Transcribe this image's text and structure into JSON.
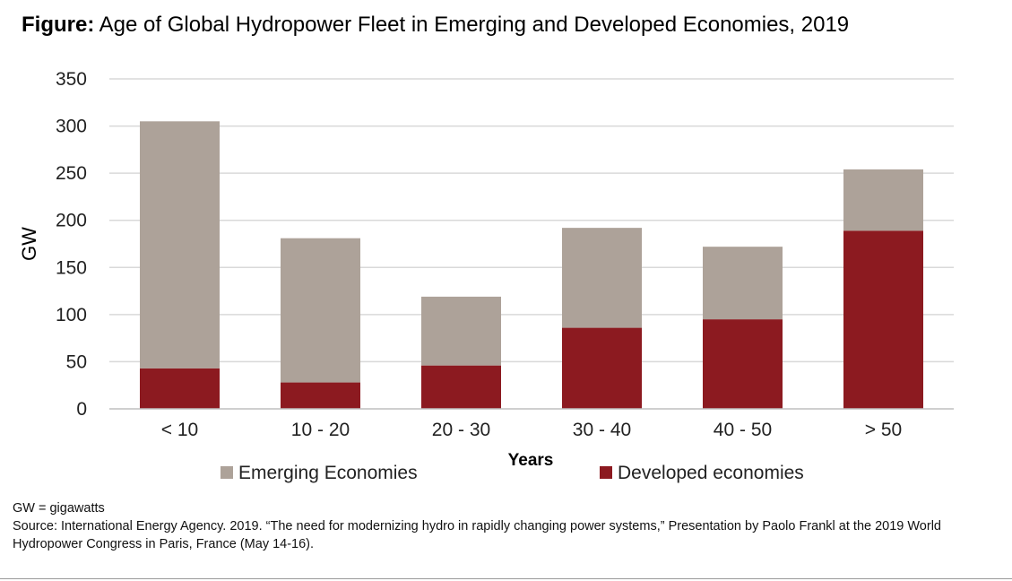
{
  "title": {
    "lead": "Figure:",
    "text": "Age of Global Hydropower Fleet in Emerging and Developed Economies, 2019"
  },
  "colors": {
    "emerging": "#ada299",
    "developed": "#8c1a20",
    "grid": "#d9d9d9",
    "axis": "#bfbfbf"
  },
  "chart_data": {
    "type": "bar",
    "stacked": true,
    "categories": [
      "< 10",
      "10 - 20",
      "20 - 30",
      "30 - 40",
      "40 - 50",
      "> 50"
    ],
    "series": [
      {
        "name": "Developed economies",
        "values": [
          43,
          28,
          46,
          86,
          95,
          189
        ]
      },
      {
        "name": "Emerging Economies",
        "values": [
          262,
          153,
          73,
          106,
          77,
          65
        ]
      }
    ],
    "xlabel": "Years",
    "ylabel": "GW",
    "ylim": [
      0,
      350
    ],
    "yticks": [
      0,
      50,
      100,
      150,
      200,
      250,
      300,
      350
    ],
    "grid": true,
    "legend_position": "bottom",
    "legend_order": [
      "Emerging Economies",
      "Developed economies"
    ]
  },
  "notes": {
    "abbrev": "GW = gigawatts",
    "source": "Source: International Energy Agency. 2019. “The need for modernizing hydro in rapidly changing power systems,” Presentation by Paolo Frankl at the 2019 World Hydropower Congress in Paris, France (May 14-16)."
  }
}
